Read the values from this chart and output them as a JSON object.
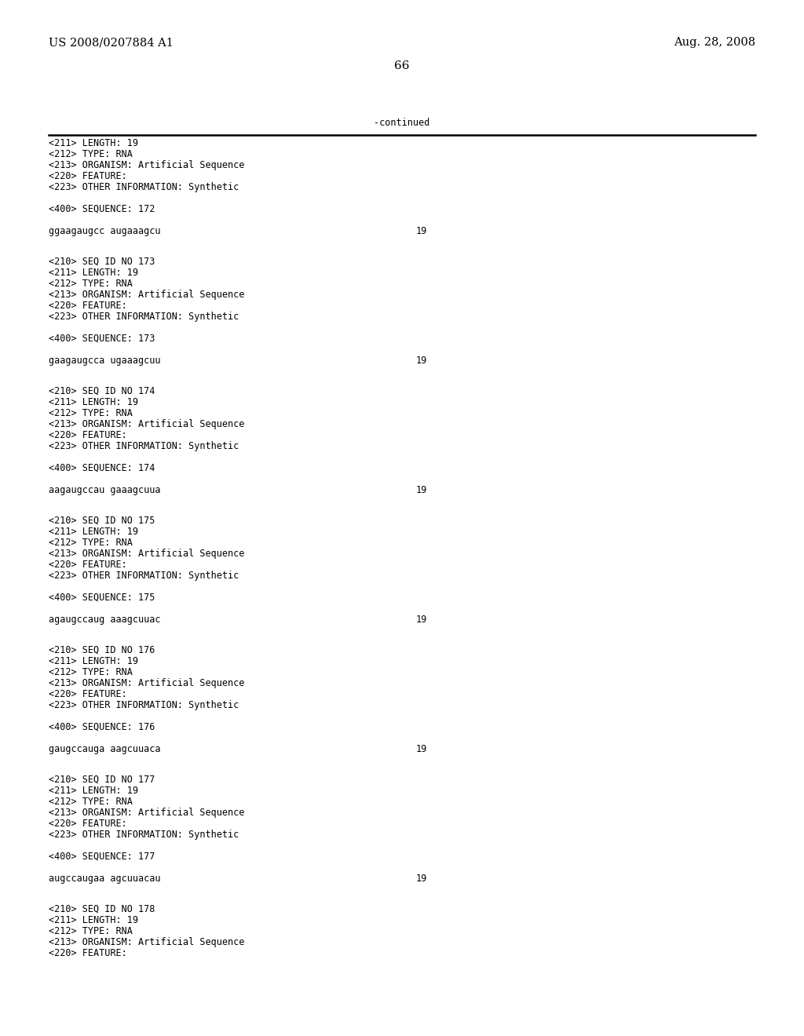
{
  "header_left": "US 2008/0207884 A1",
  "header_right": "Aug. 28, 2008",
  "page_number": "66",
  "continued_label": "-continued",
  "background_color": "#ffffff",
  "text_color": "#000000",
  "font_size_header": 10.5,
  "font_size_body": 8.5,
  "font_size_page": 11,
  "blocks": [
    {
      "lines": [
        "<211> LENGTH: 19",
        "<212> TYPE: RNA",
        "<213> ORGANISM: Artificial Sequence",
        "<220> FEATURE:",
        "<223> OTHER INFORMATION: Synthetic"
      ],
      "sequence_label": "<400> SEQUENCE: 172",
      "sequence": "ggaagaugcc augaaagcu",
      "seq_number": "19"
    },
    {
      "lines": [
        "<210> SEQ ID NO 173",
        "<211> LENGTH: 19",
        "<212> TYPE: RNA",
        "<213> ORGANISM: Artificial Sequence",
        "<220> FEATURE:",
        "<223> OTHER INFORMATION: Synthetic"
      ],
      "sequence_label": "<400> SEQUENCE: 173",
      "sequence": "gaagaugcca ugaaagcuu",
      "seq_number": "19"
    },
    {
      "lines": [
        "<210> SEQ ID NO 174",
        "<211> LENGTH: 19",
        "<212> TYPE: RNA",
        "<213> ORGANISM: Artificial Sequence",
        "<220> FEATURE:",
        "<223> OTHER INFORMATION: Synthetic"
      ],
      "sequence_label": "<400> SEQUENCE: 174",
      "sequence": "aagaugccau gaaagcuua",
      "seq_number": "19"
    },
    {
      "lines": [
        "<210> SEQ ID NO 175",
        "<211> LENGTH: 19",
        "<212> TYPE: RNA",
        "<213> ORGANISM: Artificial Sequence",
        "<220> FEATURE:",
        "<223> OTHER INFORMATION: Synthetic"
      ],
      "sequence_label": "<400> SEQUENCE: 175",
      "sequence": "agaugccaug aaagcuuac",
      "seq_number": "19"
    },
    {
      "lines": [
        "<210> SEQ ID NO 176",
        "<211> LENGTH: 19",
        "<212> TYPE: RNA",
        "<213> ORGANISM: Artificial Sequence",
        "<220> FEATURE:",
        "<223> OTHER INFORMATION: Synthetic"
      ],
      "sequence_label": "<400> SEQUENCE: 176",
      "sequence": "gaugccauga aagcuuaca",
      "seq_number": "19"
    },
    {
      "lines": [
        "<210> SEQ ID NO 177",
        "<211> LENGTH: 19",
        "<212> TYPE: RNA",
        "<213> ORGANISM: Artificial Sequence",
        "<220> FEATURE:",
        "<223> OTHER INFORMATION: Synthetic"
      ],
      "sequence_label": "<400> SEQUENCE: 177",
      "sequence": "augccaugaa agcuuacau",
      "seq_number": "19"
    },
    {
      "lines": [
        "<210> SEQ ID NO 178",
        "<211> LENGTH: 19",
        "<212> TYPE: RNA",
        "<213> ORGANISM: Artificial Sequence",
        "<220> FEATURE:"
      ],
      "sequence_label": null,
      "sequence": null,
      "seq_number": null
    }
  ]
}
